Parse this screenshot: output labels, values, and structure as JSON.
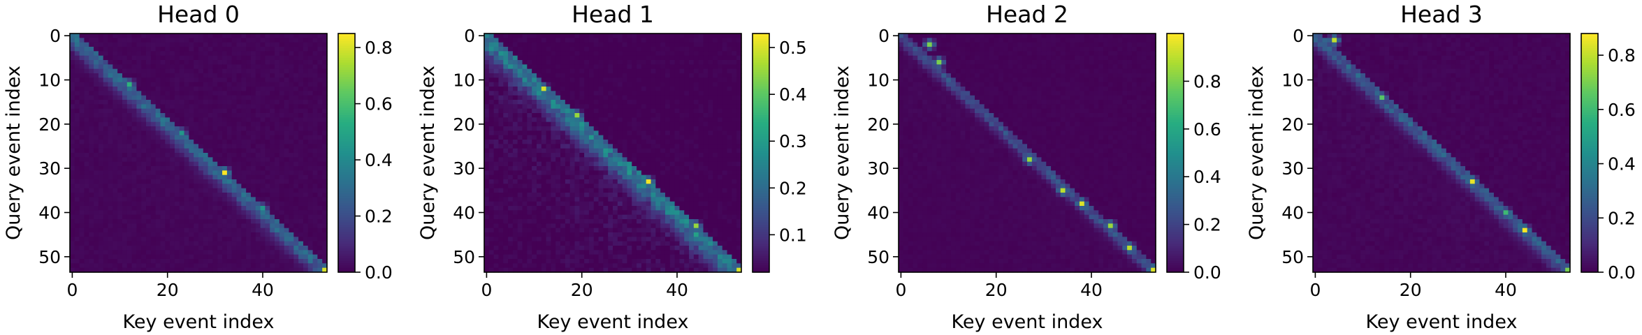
{
  "chart_data": [
    {
      "type": "heatmap",
      "title": "Head 0",
      "xlabel": "Key event index",
      "ylabel": "Query event index",
      "x_ticks": [
        "0",
        "20",
        "40"
      ],
      "y_ticks": [
        "0",
        "10",
        "20",
        "30",
        "40",
        "50"
      ],
      "matrix_size": 54,
      "colormap": "viridis",
      "colorbar": {
        "min": 0.0,
        "max": 0.85,
        "ticks": [
          "0.0",
          "0.2",
          "0.4",
          "0.6",
          "0.8"
        ]
      },
      "pattern": {
        "diag_base": 0.34,
        "width": 2.2,
        "off_diag": 0.015,
        "background_noise": 0.02,
        "peaks": [
          [
            0,
            0,
            0.3
          ],
          [
            11,
            12,
            0.55
          ],
          [
            22,
            23,
            0.45
          ],
          [
            31,
            32,
            0.85
          ],
          [
            39,
            40,
            0.45
          ],
          [
            53,
            53,
            0.8
          ]
        ]
      }
    },
    {
      "type": "heatmap",
      "title": "Head 1",
      "xlabel": "Key event index",
      "ylabel": "Query event index",
      "x_ticks": [
        "0",
        "20",
        "40"
      ],
      "y_ticks": [
        "0",
        "10",
        "20",
        "30",
        "40",
        "50"
      ],
      "matrix_size": 54,
      "colormap": "viridis",
      "colorbar": {
        "min": 0.02,
        "max": 0.53,
        "ticks": [
          "0.1",
          "0.2",
          "0.3",
          "0.4",
          "0.5"
        ]
      },
      "pattern": {
        "diag_base": 0.26,
        "width": 3.0,
        "off_diag": 0.06,
        "background_noise": 0.03,
        "peaks": [
          [
            12,
            12,
            0.5
          ],
          [
            18,
            19,
            0.45
          ],
          [
            33,
            34,
            0.52
          ],
          [
            43,
            44,
            0.45
          ],
          [
            53,
            53,
            0.5
          ]
        ]
      }
    },
    {
      "type": "heatmap",
      "title": "Head 2",
      "xlabel": "Key event index",
      "ylabel": "Query event index",
      "x_ticks": [
        "0",
        "20",
        "40"
      ],
      "y_ticks": [
        "0",
        "10",
        "20",
        "30",
        "40",
        "50"
      ],
      "matrix_size": 54,
      "colormap": "viridis",
      "colorbar": {
        "min": 0.0,
        "max": 1.0,
        "ticks": [
          "0.0",
          "0.2",
          "0.4",
          "0.6",
          "0.8"
        ]
      },
      "pattern": {
        "diag_base": 0.3,
        "width": 1.4,
        "off_diag": 0.02,
        "background_noise": 0.015,
        "peaks": [
          [
            2,
            6,
            0.8
          ],
          [
            6,
            8,
            0.8
          ],
          [
            28,
            27,
            0.85
          ],
          [
            35,
            34,
            0.9
          ],
          [
            38,
            38,
            0.95
          ],
          [
            43,
            44,
            0.85
          ],
          [
            48,
            48,
            0.9
          ],
          [
            53,
            53,
            0.95
          ]
        ]
      }
    },
    {
      "type": "heatmap",
      "title": "Head 3",
      "xlabel": "Key event index",
      "ylabel": "Query event index",
      "x_ticks": [
        "0",
        "20",
        "40"
      ],
      "y_ticks": [
        "0",
        "10",
        "20",
        "30",
        "40",
        "50"
      ],
      "matrix_size": 54,
      "colormap": "viridis",
      "colorbar": {
        "min": 0.0,
        "max": 0.88,
        "ticks": [
          "0.0",
          "0.2",
          "0.4",
          "0.6",
          "0.8"
        ]
      },
      "pattern": {
        "diag_base": 0.32,
        "width": 1.8,
        "off_diag": 0.02,
        "background_noise": 0.02,
        "peaks": [
          [
            1,
            4,
            0.8
          ],
          [
            14,
            14,
            0.65
          ],
          [
            33,
            33,
            0.85
          ],
          [
            40,
            40,
            0.6
          ],
          [
            44,
            44,
            0.88
          ],
          [
            53,
            53,
            0.7
          ]
        ]
      }
    }
  ]
}
